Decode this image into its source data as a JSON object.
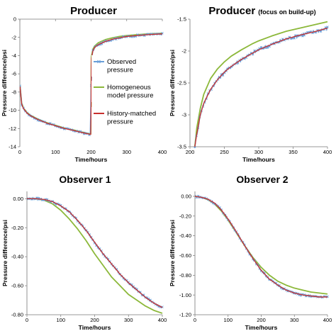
{
  "chart_data": [
    {
      "type": "line",
      "title": "Producer",
      "xlabel": "Time/hours",
      "ylabel": "Pressure difference/psi",
      "xlim": [
        0,
        400
      ],
      "ylim": [
        -14,
        0
      ],
      "x_ticks": [
        0,
        100,
        200,
        300,
        400
      ],
      "y_ticks": [
        0,
        -2,
        -4,
        -6,
        -8,
        -10,
        -12,
        -14
      ],
      "y_tick_labels": [
        "0",
        "-2",
        "-4",
        "-6",
        "-8",
        "-10",
        "-12",
        "-14"
      ],
      "grid": false,
      "legend_position": "right",
      "series": [
        {
          "name": "Observed\npressure",
          "color": "#6a9fd8",
          "marker": "x",
          "x": [
            0.5,
            5,
            10,
            20,
            30,
            50,
            75,
            100,
            125,
            150,
            175,
            199,
            200,
            200.5,
            201,
            205,
            210,
            220,
            240,
            260,
            280,
            300,
            330,
            360,
            400
          ],
          "y": [
            -7.4,
            -9.3,
            -9.8,
            -10.3,
            -10.6,
            -11.0,
            -11.4,
            -11.7,
            -12.0,
            -12.2,
            -12.45,
            -12.65,
            -9.5,
            -5.2,
            -4.3,
            -3.5,
            -3.1,
            -2.8,
            -2.45,
            -2.2,
            -2.05,
            -1.9,
            -1.8,
            -1.7,
            -1.62
          ]
        },
        {
          "name": "Homogeneous\nmodel pressure",
          "color": "#8cb83a",
          "x": [
            0.5,
            5,
            10,
            20,
            30,
            50,
            75,
            100,
            125,
            150,
            175,
            199,
            200,
            200.5,
            201,
            205,
            210,
            220,
            240,
            260,
            280,
            300,
            330,
            360,
            400
          ],
          "y": [
            -7.3,
            -9.2,
            -9.75,
            -10.25,
            -10.55,
            -10.95,
            -11.35,
            -11.65,
            -11.95,
            -12.15,
            -12.4,
            -12.6,
            -9.3,
            -5.0,
            -4.1,
            -3.3,
            -2.95,
            -2.6,
            -2.25,
            -2.05,
            -1.9,
            -1.8,
            -1.7,
            -1.62,
            -1.55
          ]
        },
        {
          "name": "History-matched\npressure",
          "color": "#c8302e",
          "x": [
            0.5,
            5,
            10,
            20,
            30,
            50,
            75,
            100,
            125,
            150,
            175,
            199,
            200,
            200.5,
            201,
            205,
            210,
            220,
            240,
            260,
            280,
            300,
            330,
            360,
            400
          ],
          "y": [
            -7.4,
            -9.3,
            -9.8,
            -10.3,
            -10.6,
            -11.0,
            -11.4,
            -11.7,
            -12.0,
            -12.2,
            -12.45,
            -12.65,
            -9.5,
            -5.2,
            -4.3,
            -3.5,
            -3.1,
            -2.8,
            -2.45,
            -2.2,
            -2.05,
            -1.9,
            -1.8,
            -1.7,
            -1.62
          ]
        }
      ]
    },
    {
      "type": "line",
      "title": "Producer",
      "subtitle": "(focus on build-up)",
      "xlabel": "Time/hours",
      "ylabel": "Pressure difference/psi",
      "xlim": [
        200,
        400
      ],
      "ylim": [
        -3.5,
        -1.5
      ],
      "x_ticks": [
        200,
        250,
        300,
        350,
        400
      ],
      "y_ticks": [
        -1.5,
        -2,
        -2.5,
        -3,
        -3.5
      ],
      "y_tick_labels": [
        "-1.5",
        "-2",
        "-2.5",
        "-3",
        "-3.5"
      ],
      "grid": false,
      "series": [
        {
          "color": "#6a9fd8",
          "marker": "x",
          "x": [
            207,
            210,
            215,
            220,
            230,
            240,
            250,
            260,
            275,
            290,
            300,
            320,
            340,
            360,
            380,
            400
          ],
          "y": [
            -3.5,
            -3.3,
            -3.0,
            -2.82,
            -2.6,
            -2.45,
            -2.33,
            -2.24,
            -2.13,
            -2.04,
            -1.98,
            -1.89,
            -1.81,
            -1.75,
            -1.7,
            -1.64
          ]
        },
        {
          "color": "#8cb83a",
          "x": [
            207,
            210,
            215,
            220,
            230,
            240,
            250,
            260,
            275,
            290,
            300,
            320,
            340,
            360,
            380,
            400
          ],
          "y": [
            -3.5,
            -3.2,
            -2.9,
            -2.68,
            -2.43,
            -2.28,
            -2.17,
            -2.08,
            -1.98,
            -1.89,
            -1.84,
            -1.76,
            -1.69,
            -1.64,
            -1.59,
            -1.54
          ]
        },
        {
          "color": "#c8302e",
          "x": [
            207,
            210,
            215,
            220,
            230,
            240,
            250,
            260,
            275,
            290,
            300,
            320,
            340,
            360,
            380,
            400
          ],
          "y": [
            -3.5,
            -3.3,
            -3.0,
            -2.82,
            -2.6,
            -2.45,
            -2.33,
            -2.24,
            -2.13,
            -2.04,
            -1.98,
            -1.89,
            -1.81,
            -1.75,
            -1.7,
            -1.64
          ]
        }
      ]
    },
    {
      "type": "line",
      "title": "Observer 1",
      "xlabel": "Time/hours",
      "ylabel": "Pressure difference/psi",
      "xlim": [
        0,
        400
      ],
      "ylim": [
        -0.8,
        0.05
      ],
      "x_ticks": [
        0,
        100,
        200,
        300,
        400
      ],
      "y_ticks": [
        0,
        -0.2,
        -0.4,
        -0.6,
        -0.8
      ],
      "y_tick_labels": [
        "0.00",
        "-0.20",
        "-0.40",
        "-0.60",
        "-0.80"
      ],
      "grid": false,
      "series": [
        {
          "color": "#6a9fd8",
          "marker": "x",
          "x": [
            0,
            25,
            50,
            75,
            100,
            125,
            150,
            175,
            200,
            225,
            250,
            275,
            300,
            325,
            350,
            375,
            400
          ],
          "y": [
            0.0,
            0.0,
            -0.005,
            -0.02,
            -0.05,
            -0.09,
            -0.15,
            -0.22,
            -0.3,
            -0.38,
            -0.45,
            -0.52,
            -0.58,
            -0.63,
            -0.68,
            -0.72,
            -0.75
          ]
        },
        {
          "color": "#8cb83a",
          "x": [
            0,
            25,
            50,
            75,
            100,
            125,
            150,
            175,
            200,
            225,
            250,
            275,
            300,
            325,
            350,
            375,
            400
          ],
          "y": [
            0.0,
            0.0,
            -0.01,
            -0.035,
            -0.08,
            -0.14,
            -0.21,
            -0.29,
            -0.38,
            -0.46,
            -0.54,
            -0.6,
            -0.66,
            -0.7,
            -0.74,
            -0.77,
            -0.79
          ]
        },
        {
          "color": "#c8302e",
          "x": [
            0,
            25,
            50,
            75,
            100,
            125,
            150,
            175,
            200,
            225,
            250,
            275,
            300,
            325,
            350,
            375,
            400
          ],
          "y": [
            0.0,
            0.0,
            -0.005,
            -0.02,
            -0.05,
            -0.09,
            -0.15,
            -0.22,
            -0.3,
            -0.38,
            -0.45,
            -0.52,
            -0.58,
            -0.63,
            -0.68,
            -0.72,
            -0.75
          ]
        }
      ]
    },
    {
      "type": "line",
      "title": "Observer 2",
      "xlabel": "Time/hours",
      "ylabel": "Pressure difference/psi",
      "xlim": [
        0,
        400
      ],
      "ylim": [
        -1.2,
        0.05
      ],
      "x_ticks": [
        0,
        100,
        200,
        300,
        400
      ],
      "y_ticks": [
        0,
        -0.2,
        -0.4,
        -0.6,
        -0.8,
        -1.0,
        -1.2
      ],
      "y_tick_labels": [
        "0.00",
        "-0.20",
        "-0.40",
        "-0.60",
        "-0.80",
        "-1.00",
        "-1.20"
      ],
      "grid": false,
      "series": [
        {
          "color": "#6a9fd8",
          "marker": "x",
          "x": [
            0,
            20,
            40,
            60,
            80,
            100,
            125,
            150,
            175,
            200,
            225,
            250,
            275,
            300,
            325,
            350,
            375,
            400
          ],
          "y": [
            0.0,
            -0.01,
            -0.03,
            -0.07,
            -0.14,
            -0.23,
            -0.36,
            -0.5,
            -0.63,
            -0.75,
            -0.84,
            -0.9,
            -0.95,
            -0.98,
            -1.0,
            -1.01,
            -1.02,
            -1.02
          ]
        },
        {
          "color": "#8cb83a",
          "x": [
            0,
            20,
            40,
            60,
            80,
            100,
            125,
            150,
            175,
            200,
            225,
            250,
            275,
            300,
            325,
            350,
            375,
            400
          ],
          "y": [
            0.0,
            -0.01,
            -0.035,
            -0.08,
            -0.15,
            -0.24,
            -0.37,
            -0.5,
            -0.62,
            -0.72,
            -0.8,
            -0.86,
            -0.9,
            -0.93,
            -0.95,
            -0.97,
            -0.98,
            -0.99
          ]
        },
        {
          "color": "#c8302e",
          "x": [
            0,
            20,
            40,
            60,
            80,
            100,
            125,
            150,
            175,
            200,
            225,
            250,
            275,
            300,
            325,
            350,
            375,
            400
          ],
          "y": [
            0.0,
            -0.01,
            -0.03,
            -0.07,
            -0.14,
            -0.23,
            -0.36,
            -0.5,
            -0.63,
            -0.75,
            -0.84,
            -0.9,
            -0.95,
            -0.98,
            -1.0,
            -1.01,
            -1.02,
            -1.02
          ]
        }
      ]
    }
  ]
}
